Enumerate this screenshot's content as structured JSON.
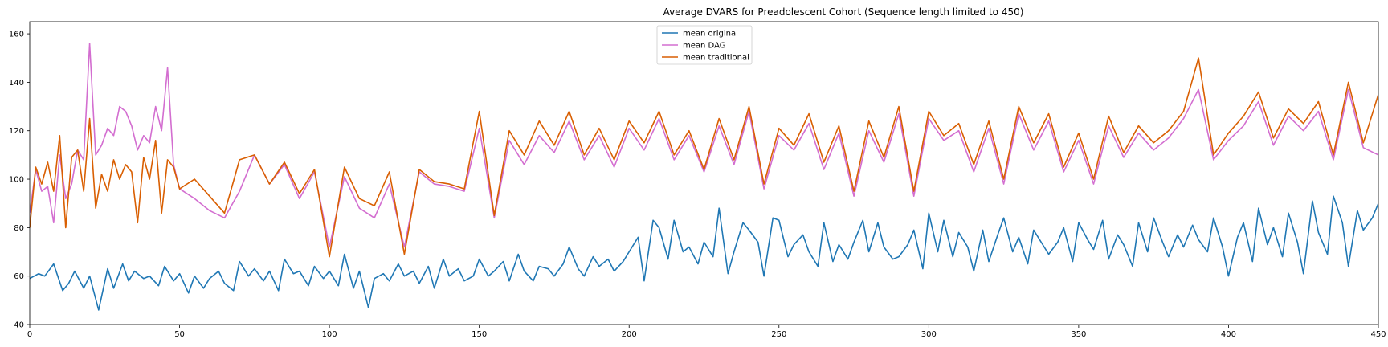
{
  "chart_data": {
    "type": "line",
    "title": "Average DVARS for Preadolescent Cohort (Sequence length limited to 450)",
    "xlabel": "",
    "ylabel": "",
    "xlim": [
      0,
      450
    ],
    "ylim": [
      40,
      165
    ],
    "xticks": [
      0,
      50,
      100,
      150,
      200,
      250,
      300,
      350,
      400,
      450
    ],
    "yticks": [
      40,
      60,
      80,
      100,
      120,
      140,
      160
    ],
    "grid": false,
    "legend_position": "top-center",
    "series": [
      {
        "name": "mean original",
        "color": "#1f77b4",
        "x": [
          0,
          3,
          5,
          8,
          11,
          13,
          15,
          18,
          20,
          23,
          26,
          28,
          31,
          33,
          35,
          38,
          40,
          43,
          45,
          48,
          50,
          53,
          55,
          58,
          60,
          63,
          65,
          68,
          70,
          73,
          75,
          78,
          80,
          83,
          85,
          88,
          90,
          93,
          95,
          98,
          100,
          103,
          105,
          108,
          110,
          113,
          115,
          118,
          120,
          123,
          125,
          128,
          130,
          133,
          135,
          138,
          140,
          143,
          145,
          148,
          150,
          153,
          155,
          158,
          160,
          163,
          165,
          168,
          170,
          173,
          175,
          178,
          180,
          183,
          185,
          188,
          190,
          193,
          195,
          198,
          200,
          203,
          205,
          208,
          210,
          213,
          215,
          218,
          220,
          223,
          225,
          228,
          230,
          233,
          235,
          238,
          240,
          243,
          245,
          248,
          250,
          253,
          255,
          258,
          260,
          263,
          265,
          268,
          270,
          273,
          275,
          278,
          280,
          283,
          285,
          288,
          290,
          293,
          295,
          298,
          300,
          303,
          305,
          308,
          310,
          313,
          315,
          318,
          320,
          323,
          325,
          328,
          330,
          333,
          335,
          338,
          340,
          343,
          345,
          348,
          350,
          353,
          355,
          358,
          360,
          363,
          365,
          368,
          370,
          373,
          375,
          378,
          380,
          383,
          385,
          388,
          390,
          393,
          395,
          398,
          400,
          403,
          405,
          408,
          410,
          413,
          415,
          418,
          420,
          423,
          425,
          428,
          430,
          433,
          435,
          438,
          440,
          443,
          445,
          448,
          450
        ],
        "values": [
          59,
          61,
          60,
          65,
          54,
          57,
          62,
          55,
          60,
          46,
          63,
          55,
          65,
          58,
          62,
          59,
          60,
          56,
          64,
          58,
          61,
          53,
          60,
          55,
          59,
          62,
          57,
          54,
          66,
          60,
          63,
          58,
          62,
          54,
          67,
          61,
          62,
          56,
          64,
          59,
          62,
          56,
          69,
          55,
          62,
          47,
          59,
          61,
          58,
          65,
          60,
          62,
          57,
          64,
          55,
          67,
          60,
          63,
          58,
          60,
          67,
          60,
          62,
          66,
          58,
          69,
          62,
          58,
          64,
          63,
          60,
          65,
          72,
          63,
          60,
          68,
          64,
          67,
          62,
          66,
          70,
          76,
          58,
          83,
          80,
          67,
          83,
          70,
          72,
          65,
          74,
          68,
          88,
          61,
          70,
          82,
          79,
          74,
          60,
          84,
          83,
          68,
          73,
          77,
          70,
          64,
          82,
          66,
          73,
          67,
          74,
          83,
          70,
          82,
          72,
          67,
          68,
          73,
          79,
          63,
          86,
          70,
          83,
          68,
          78,
          72,
          62,
          79,
          66,
          77,
          84,
          70,
          76,
          65,
          79,
          73,
          69,
          74,
          80,
          66,
          82,
          75,
          71,
          83,
          67,
          77,
          73,
          64,
          82,
          70,
          84,
          74,
          68,
          77,
          72,
          81,
          75,
          70,
          84,
          72,
          60,
          76,
          82,
          66,
          88,
          73,
          80,
          68,
          86,
          74,
          61,
          91,
          78,
          69,
          93,
          82,
          64,
          87,
          79,
          84,
          90
        ]
      },
      {
        "name": "mean DAG",
        "color": "#d36ed0",
        "x": [
          0,
          2,
          4,
          6,
          8,
          10,
          12,
          14,
          16,
          18,
          20,
          22,
          24,
          26,
          28,
          30,
          32,
          34,
          36,
          38,
          40,
          42,
          44,
          46,
          48,
          50,
          55,
          60,
          65,
          70,
          75,
          80,
          85,
          90,
          95,
          100,
          105,
          110,
          115,
          120,
          125,
          130,
          135,
          140,
          145,
          150,
          155,
          160,
          165,
          170,
          175,
          180,
          185,
          190,
          195,
          200,
          205,
          210,
          215,
          220,
          225,
          230,
          235,
          240,
          245,
          250,
          255,
          260,
          265,
          270,
          275,
          280,
          285,
          290,
          295,
          300,
          305,
          310,
          315,
          320,
          325,
          330,
          335,
          340,
          345,
          350,
          355,
          360,
          365,
          370,
          375,
          380,
          385,
          390,
          395,
          400,
          405,
          410,
          415,
          420,
          425,
          430,
          435,
          440,
          445,
          450
        ],
        "values": [
          86,
          104,
          95,
          97,
          82,
          110,
          92,
          98,
          112,
          108,
          156,
          110,
          114,
          121,
          118,
          130,
          128,
          122,
          112,
          118,
          115,
          130,
          120,
          146,
          106,
          96,
          92,
          87,
          84,
          95,
          110,
          98,
          106,
          92,
          103,
          72,
          101,
          88,
          84,
          98,
          72,
          103,
          98,
          97,
          95,
          121,
          84,
          116,
          106,
          118,
          111,
          124,
          108,
          118,
          105,
          121,
          112,
          125,
          108,
          118,
          103,
          122,
          106,
          128,
          96,
          118,
          112,
          123,
          104,
          119,
          93,
          120,
          107,
          127,
          93,
          125,
          116,
          120,
          103,
          121,
          98,
          127,
          112,
          124,
          103,
          116,
          98,
          122,
          109,
          119,
          112,
          117,
          125,
          137,
          108,
          116,
          122,
          132,
          114,
          126,
          120,
          128,
          108,
          137,
          113,
          110
        ]
      },
      {
        "name": "mean traditional",
        "color": "#d95f02",
        "x": [
          0,
          2,
          4,
          6,
          8,
          10,
          12,
          14,
          16,
          18,
          20,
          22,
          24,
          26,
          28,
          30,
          32,
          34,
          36,
          38,
          40,
          42,
          44,
          46,
          48,
          50,
          55,
          60,
          65,
          70,
          75,
          80,
          85,
          90,
          95,
          100,
          105,
          110,
          115,
          120,
          125,
          130,
          135,
          140,
          145,
          150,
          155,
          160,
          165,
          170,
          175,
          180,
          185,
          190,
          195,
          200,
          205,
          210,
          215,
          220,
          225,
          230,
          235,
          240,
          245,
          250,
          255,
          260,
          265,
          270,
          275,
          280,
          285,
          290,
          295,
          300,
          305,
          310,
          315,
          320,
          325,
          330,
          335,
          340,
          345,
          350,
          355,
          360,
          365,
          370,
          375,
          380,
          385,
          390,
          395,
          400,
          405,
          410,
          415,
          420,
          425,
          430,
          435,
          440,
          445,
          450
        ],
        "values": [
          80,
          105,
          98,
          107,
          95,
          118,
          80,
          109,
          112,
          95,
          125,
          88,
          102,
          95,
          108,
          100,
          106,
          103,
          82,
          109,
          100,
          116,
          86,
          108,
          105,
          96,
          100,
          93,
          86,
          108,
          110,
          98,
          107,
          94,
          104,
          68,
          105,
          92,
          89,
          103,
          69,
          104,
          99,
          98,
          96,
          128,
          85,
          120,
          110,
          124,
          114,
          128,
          110,
          121,
          108,
          124,
          115,
          128,
          110,
          120,
          104,
          125,
          108,
          130,
          98,
          121,
          114,
          127,
          107,
          122,
          95,
          124,
          109,
          130,
          95,
          128,
          118,
          123,
          106,
          124,
          100,
          130,
          115,
          127,
          105,
          119,
          100,
          126,
          111,
          122,
          115,
          120,
          128,
          150,
          110,
          119,
          126,
          136,
          117,
          129,
          123,
          132,
          110,
          140,
          115,
          135
        ]
      }
    ]
  }
}
